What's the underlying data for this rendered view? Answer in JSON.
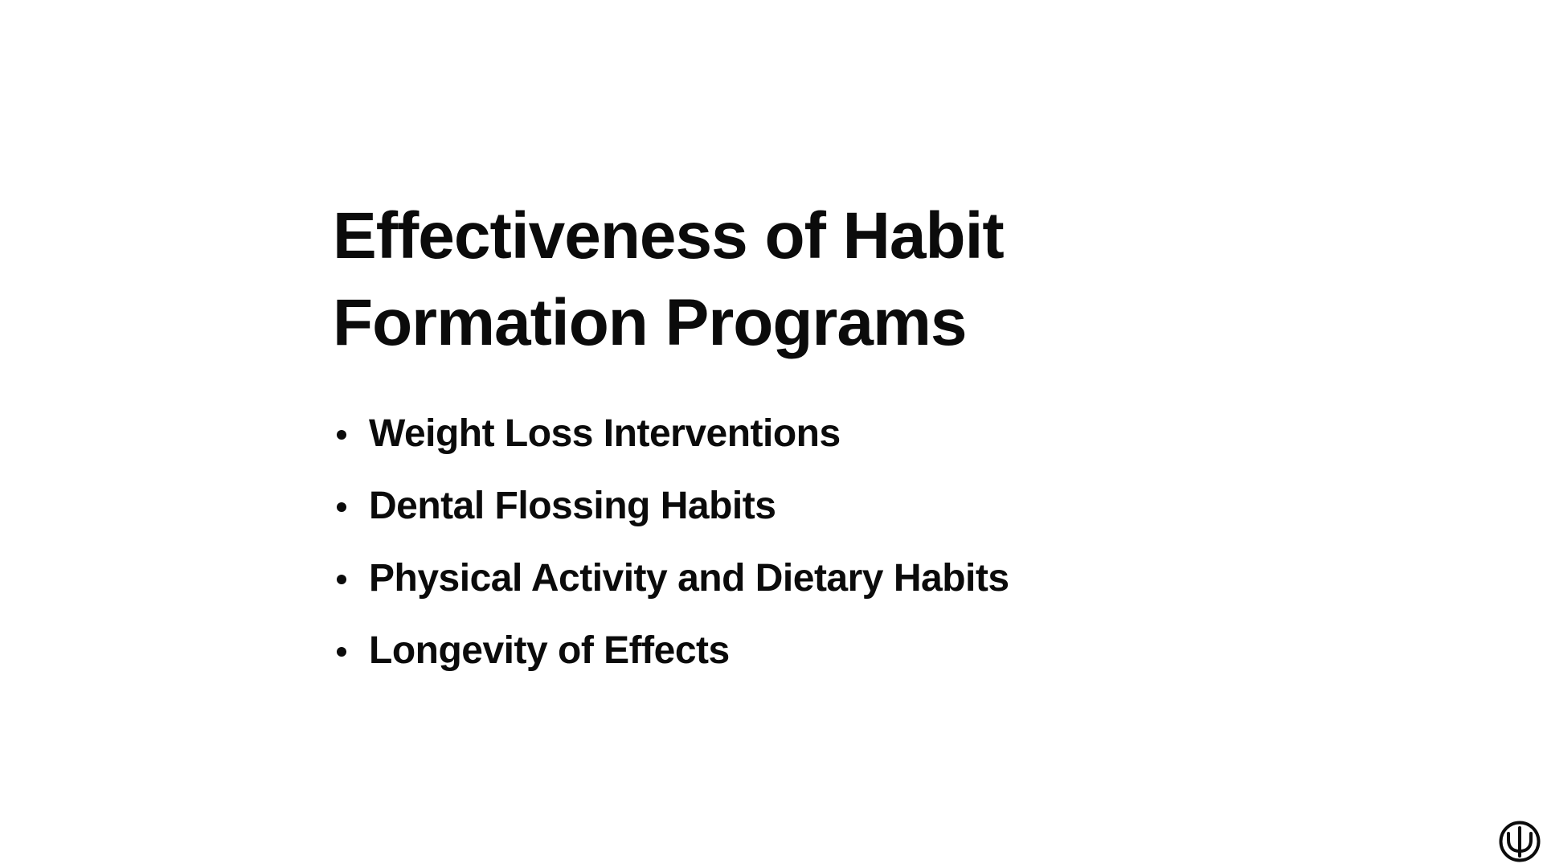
{
  "slide": {
    "title_lines": [
      "Effectiveness of Habit",
      "Formation Programs"
    ],
    "bullets": [
      "Weight Loss Interventions",
      "Dental Flossing Habits",
      "Physical Activity and Dietary Habits",
      "Longevity of Effects"
    ]
  },
  "logo": {
    "icon": "psi-icon"
  },
  "colors": {
    "text": "#0b0b0b",
    "background": "#ffffff"
  }
}
